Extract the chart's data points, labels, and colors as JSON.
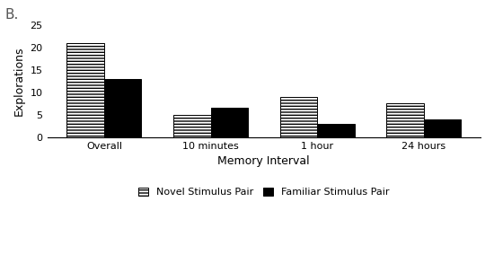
{
  "categories": [
    "Overall",
    "10 minutes",
    "1 hour",
    "24 hours"
  ],
  "novel_values": [
    21,
    5,
    9,
    7.5
  ],
  "familiar_values": [
    13,
    6.5,
    3,
    4
  ],
  "ylabel": "Explorations",
  "xlabel": "Memory Interval",
  "panel_label": "B.",
  "ylim": [
    0,
    25
  ],
  "yticks": [
    0,
    5,
    10,
    15,
    20,
    25
  ],
  "bar_width": 0.35,
  "novel_hatch": "-----",
  "novel_facecolor": "#ffffff",
  "novel_edgecolor": "#000000",
  "familiar_facecolor": "#000000",
  "familiar_edgecolor": "#000000",
  "legend_novel": "Novel Stimulus Pair",
  "legend_familiar": "Familiar Stimulus Pair",
  "background_color": "#ffffff",
  "panel_fontsize": 11,
  "label_fontsize": 9,
  "tick_fontsize": 8,
  "legend_fontsize": 8
}
